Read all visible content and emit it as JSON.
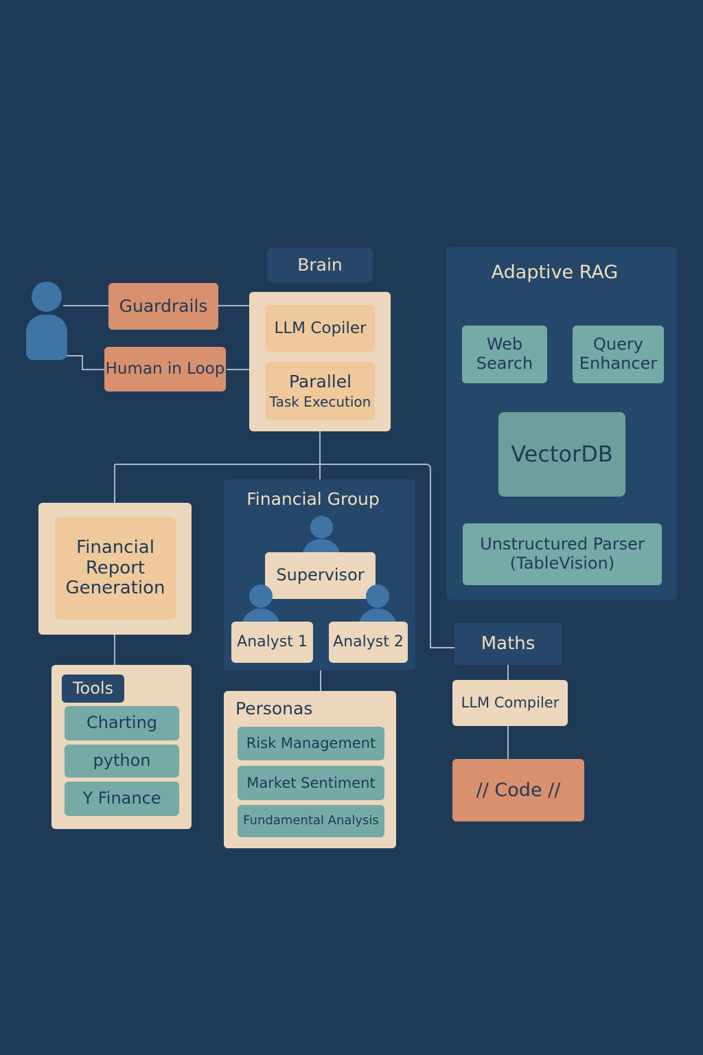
{
  "brain": {
    "title": "Brain",
    "llm_copiler": "LLM Copiler",
    "parallel_line1": "Parallel",
    "parallel_line2": "Task Execution"
  },
  "user_side": {
    "guardrails": "Guardrails",
    "human_in_loop": "Human in Loop"
  },
  "adaptive_rag": {
    "title": "Adaptive RAG",
    "web_search_line1": "Web",
    "web_search_line2": "Search",
    "query_enhancer_line1": "Query",
    "query_enhancer_line2": "Enhancer",
    "vectordb": "VectorDB",
    "parser_line1": "Unstructured Parser",
    "parser_line2": "(TableVision)"
  },
  "report": {
    "line1": "Financial",
    "line2": "Report",
    "line3": "Generation"
  },
  "tools": {
    "title": "Tools",
    "items": [
      "Charting",
      "python",
      "Y Finance"
    ]
  },
  "financial_group": {
    "title": "Financial Group",
    "supervisor": "Supervisor",
    "analyst1": "Analyst 1",
    "analyst2": "Analyst 2"
  },
  "personas": {
    "title": "Personas",
    "items": [
      "Risk Management",
      "Market Sentiment",
      "Fundamental Analysis"
    ]
  },
  "maths": {
    "title": "Maths",
    "llm_compiler": "LLM Compiler",
    "code": "// Code //"
  },
  "colors": {
    "background": "#1f3a56",
    "beige": "#ecd7bc",
    "tan": "#efc99c",
    "orange": "#d8906f",
    "teal": "#76aaa6",
    "person": "#3f74a6",
    "line": "#a9b8c6"
  },
  "icons": [
    "user-icon",
    "supervisor-icon",
    "analyst-icon"
  ]
}
